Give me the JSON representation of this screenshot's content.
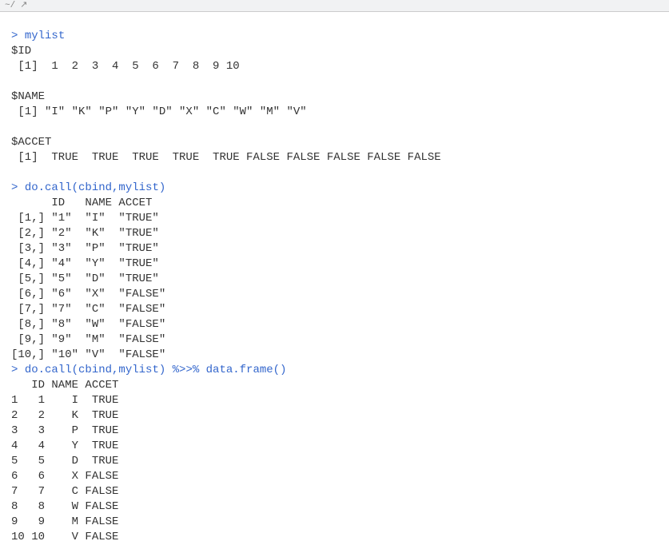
{
  "topbar": {
    "path": "~/",
    "icon": "↗"
  },
  "console": {
    "prompt": ">",
    "cmd1": "mylist",
    "out1_l1": "$ID",
    "out1_l2": " [1]  1  2  3  4  5  6  7  8  9 10",
    "out1_l3": "",
    "out1_l4": "$NAME",
    "out1_l5": " [1] \"I\" \"K\" \"P\" \"Y\" \"D\" \"X\" \"C\" \"W\" \"M\" \"V\"",
    "out1_l6": "",
    "out1_l7": "$ACCET",
    "out1_l8": " [1]  TRUE  TRUE  TRUE  TRUE  TRUE FALSE FALSE FALSE FALSE FALSE",
    "out1_l9": "",
    "cmd2": "do.call(cbind,mylist)",
    "out2_l1": "      ID   NAME ACCET  ",
    "out2_l2": " [1,] \"1\"  \"I\"  \"TRUE\" ",
    "out2_l3": " [2,] \"2\"  \"K\"  \"TRUE\" ",
    "out2_l4": " [3,] \"3\"  \"P\"  \"TRUE\" ",
    "out2_l5": " [4,] \"4\"  \"Y\"  \"TRUE\" ",
    "out2_l6": " [5,] \"5\"  \"D\"  \"TRUE\" ",
    "out2_l7": " [6,] \"6\"  \"X\"  \"FALSE\"",
    "out2_l8": " [7,] \"7\"  \"C\"  \"FALSE\"",
    "out2_l9": " [8,] \"8\"  \"W\"  \"FALSE\"",
    "out2_l10": " [9,] \"9\"  \"M\"  \"FALSE\"",
    "out2_l11": "[10,] \"10\" \"V\"  \"FALSE\"",
    "cmd3": "do.call(cbind,mylist) %>>% data.frame()",
    "out3_l1": "   ID NAME ACCET",
    "out3_l2": "1   1    I  TRUE",
    "out3_l3": "2   2    K  TRUE",
    "out3_l4": "3   3    P  TRUE",
    "out3_l5": "4   4    Y  TRUE",
    "out3_l6": "5   5    D  TRUE",
    "out3_l7": "6   6    X FALSE",
    "out3_l8": "7   7    C FALSE",
    "out3_l9": "8   8    W FALSE",
    "out3_l10": "9   9    M FALSE",
    "out3_l11": "10 10    V FALSE"
  }
}
